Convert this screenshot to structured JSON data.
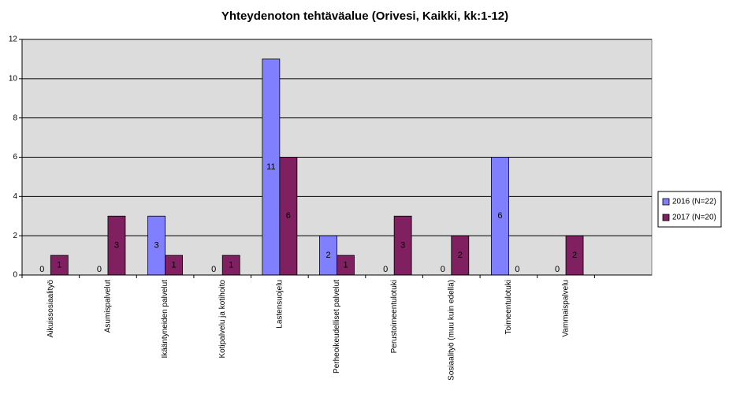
{
  "chart_data": {
    "type": "bar",
    "title": "Yhteydenoton tehtäväalue (Orivesi, Kaikki, kk:1-12)",
    "categories": [
      "Aikuissosiaalityö",
      "Asumispalvelut",
      "Ikääntyneiden palvelut",
      "Kotipalvelu ja kotihoito",
      "Lastensuojelu",
      "Perheoikeudelliset palvelut",
      "Perustoimeentulotuki",
      "Sosiaalityö (muu kuin edellä)",
      "Toimeentulotuki",
      "Vammaispalvelu",
      null
    ],
    "series": [
      {
        "name": "2016 (N=22)",
        "color": "#8080ff",
        "values": [
          0,
          0,
          3,
          0,
          11,
          2,
          0,
          0,
          6,
          0,
          null
        ]
      },
      {
        "name": "2017 (N=20)",
        "color": "#802060",
        "values": [
          1,
          3,
          1,
          1,
          6,
          1,
          3,
          2,
          0,
          2,
          null
        ]
      }
    ],
    "ylim": [
      0,
      12
    ],
    "yticks": [
      0,
      2,
      4,
      6,
      8,
      10,
      12
    ],
    "grid": true,
    "legend": "right"
  }
}
